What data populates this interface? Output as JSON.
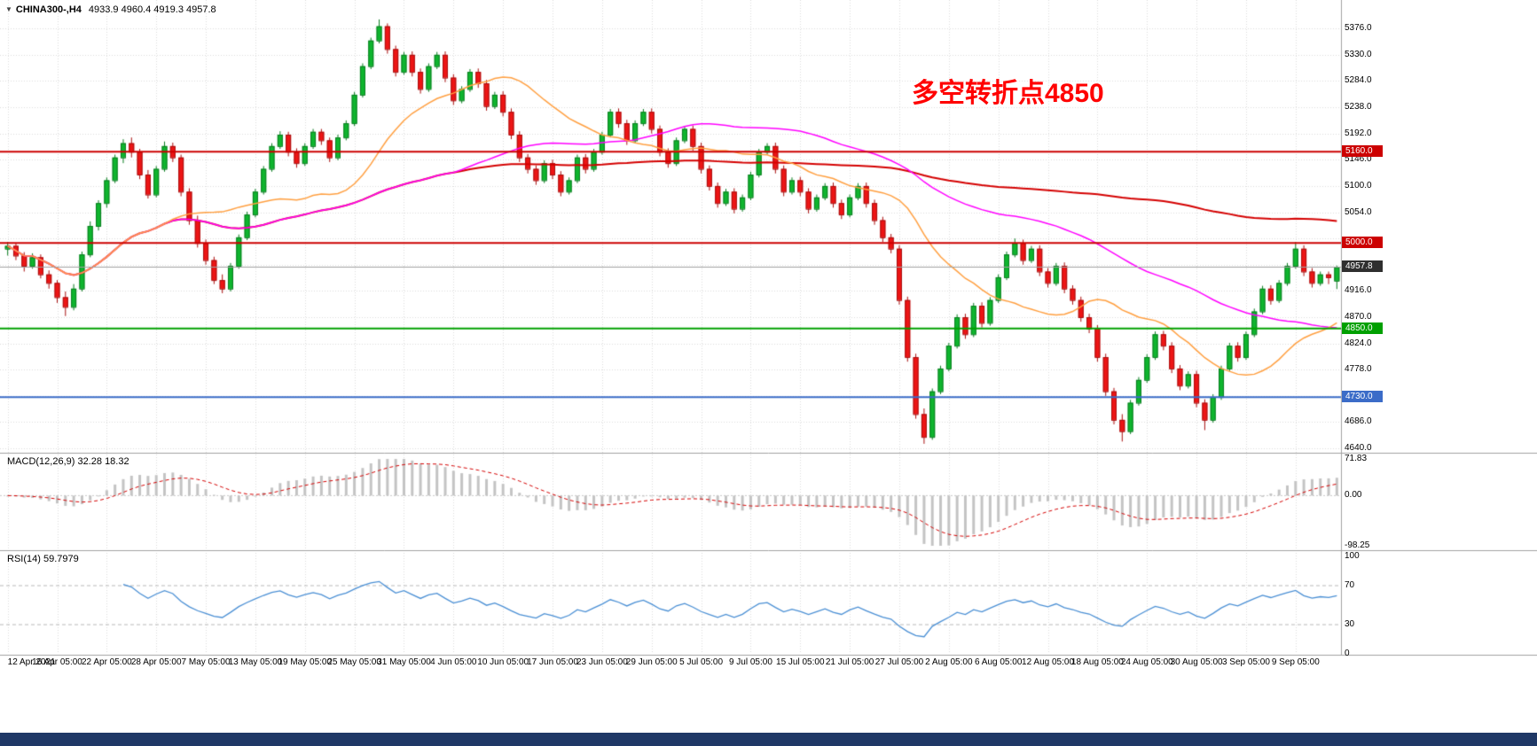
{
  "window": {
    "taskbar_color": "#1F3866"
  },
  "header": {
    "symbol": "CHINA300-,H4",
    "ohlc": "4933.9 4960.4 4919.3 4957.8"
  },
  "annotation": {
    "text": "多空转折点4850",
    "color": "#FF0000"
  },
  "chart_data": {
    "type": "candlestick",
    "symbol": "CHINA300-",
    "timeframe": "H4",
    "grid": true,
    "bars_per_x_label": 6,
    "x_labels": [
      "12 Apr 2021",
      "16 Apr 05:00",
      "22 Apr 05:00",
      "28 Apr 05:00",
      "7 May 05:00",
      "13 May 05:00",
      "19 May 05:00",
      "25 May 05:00",
      "31 May 05:00",
      "4 Jun 05:00",
      "10 Jun 05:00",
      "17 Jun 05:00",
      "23 Jun 05:00",
      "29 Jun 05:00",
      "5 Jul 05:00",
      "9 Jul 05:00",
      "15 Jul 05:00",
      "21 Jul 05:00",
      "27 Jul 05:00",
      "2 Aug 05:00",
      "6 Aug 05:00",
      "12 Aug 05:00",
      "18 Aug 05:00",
      "24 Aug 05:00",
      "30 Aug 05:00",
      "3 Sep 05:00",
      "9 Sep 05:00"
    ],
    "price_axis": {
      "max": 5395,
      "min": 4637,
      "tick_step": 46,
      "ticks": [
        "5376.0",
        "5330.0",
        "5284.0",
        "5238.0",
        "5192.0",
        "5146.0",
        "5100.0",
        "5054.0",
        "4916.0",
        "4870.0",
        "4824.0",
        "4778.0",
        "4686.0",
        "4640.0"
      ]
    },
    "candles": [
      [
        4990,
        5002,
        4978,
        4995
      ],
      [
        4995,
        5000,
        4970,
        4978
      ],
      [
        4978,
        4984,
        4950,
        4960
      ],
      [
        4960,
        4982,
        4955,
        4975
      ],
      [
        4975,
        4980,
        4938,
        4945
      ],
      [
        4945,
        4952,
        4920,
        4930
      ],
      [
        4930,
        4935,
        4895,
        4905
      ],
      [
        4905,
        4915,
        4872,
        4888
      ],
      [
        4888,
        4928,
        4882,
        4920
      ],
      [
        4920,
        4985,
        4915,
        4980
      ],
      [
        4980,
        5038,
        4975,
        5030
      ],
      [
        5030,
        5075,
        5022,
        5070
      ],
      [
        5070,
        5115,
        5062,
        5110
      ],
      [
        5110,
        5155,
        5105,
        5150
      ],
      [
        5150,
        5182,
        5140,
        5175
      ],
      [
        5175,
        5185,
        5150,
        5160
      ],
      [
        5160,
        5165,
        5112,
        5120
      ],
      [
        5120,
        5128,
        5078,
        5085
      ],
      [
        5085,
        5135,
        5080,
        5130
      ],
      [
        5130,
        5178,
        5125,
        5170
      ],
      [
        5170,
        5176,
        5142,
        5150
      ],
      [
        5150,
        5155,
        5082,
        5090
      ],
      [
        5090,
        5096,
        5032,
        5040
      ],
      [
        5040,
        5048,
        4992,
        5000
      ],
      [
        5000,
        5006,
        4962,
        4970
      ],
      [
        4970,
        4976,
        4928,
        4935
      ],
      [
        4935,
        4945,
        4912,
        4920
      ],
      [
        4920,
        4965,
        4915,
        4960
      ],
      [
        4960,
        5015,
        4955,
        5010
      ],
      [
        5010,
        5055,
        5005,
        5050
      ],
      [
        5050,
        5095,
        5045,
        5090
      ],
      [
        5090,
        5135,
        5085,
        5130
      ],
      [
        5130,
        5175,
        5125,
        5170
      ],
      [
        5170,
        5196,
        5165,
        5190
      ],
      [
        5190,
        5195,
        5152,
        5160
      ],
      [
        5160,
        5166,
        5132,
        5140
      ],
      [
        5140,
        5175,
        5135,
        5170
      ],
      [
        5170,
        5200,
        5165,
        5195
      ],
      [
        5195,
        5200,
        5172,
        5180
      ],
      [
        5180,
        5185,
        5142,
        5150
      ],
      [
        5150,
        5190,
        5145,
        5185
      ],
      [
        5185,
        5215,
        5180,
        5210
      ],
      [
        5210,
        5265,
        5205,
        5260
      ],
      [
        5260,
        5315,
        5255,
        5310
      ],
      [
        5310,
        5360,
        5305,
        5355
      ],
      [
        5355,
        5392,
        5350,
        5380
      ],
      [
        5380,
        5385,
        5332,
        5340
      ],
      [
        5340,
        5346,
        5292,
        5300
      ],
      [
        5300,
        5335,
        5295,
        5330
      ],
      [
        5330,
        5336,
        5292,
        5300
      ],
      [
        5300,
        5306,
        5262,
        5270
      ],
      [
        5270,
        5315,
        5265,
        5310
      ],
      [
        5310,
        5335,
        5305,
        5330
      ],
      [
        5330,
        5336,
        5282,
        5290
      ],
      [
        5290,
        5296,
        5242,
        5250
      ],
      [
        5250,
        5275,
        5245,
        5270
      ],
      [
        5270,
        5305,
        5265,
        5300
      ],
      [
        5300,
        5306,
        5272,
        5280
      ],
      [
        5280,
        5286,
        5232,
        5240
      ],
      [
        5240,
        5265,
        5235,
        5260
      ],
      [
        5260,
        5266,
        5222,
        5230
      ],
      [
        5230,
        5236,
        5182,
        5190
      ],
      [
        5190,
        5196,
        5142,
        5150
      ],
      [
        5150,
        5156,
        5122,
        5130
      ],
      [
        5130,
        5136,
        5102,
        5110
      ],
      [
        5110,
        5145,
        5105,
        5140
      ],
      [
        5140,
        5146,
        5112,
        5120
      ],
      [
        5120,
        5126,
        5082,
        5090
      ],
      [
        5090,
        5115,
        5085,
        5110
      ],
      [
        5110,
        5155,
        5105,
        5150
      ],
      [
        5150,
        5156,
        5122,
        5130
      ],
      [
        5130,
        5165,
        5125,
        5160
      ],
      [
        5160,
        5195,
        5155,
        5190
      ],
      [
        5190,
        5235,
        5185,
        5230
      ],
      [
        5230,
        5236,
        5202,
        5210
      ],
      [
        5210,
        5216,
        5172,
        5180
      ],
      [
        5180,
        5215,
        5175,
        5210
      ],
      [
        5210,
        5235,
        5205,
        5230
      ],
      [
        5230,
        5236,
        5192,
        5200
      ],
      [
        5200,
        5206,
        5152,
        5160
      ],
      [
        5160,
        5166,
        5132,
        5140
      ],
      [
        5140,
        5185,
        5135,
        5180
      ],
      [
        5180,
        5205,
        5175,
        5200
      ],
      [
        5200,
        5206,
        5162,
        5170
      ],
      [
        5170,
        5176,
        5122,
        5130
      ],
      [
        5130,
        5136,
        5092,
        5100
      ],
      [
        5100,
        5106,
        5062,
        5070
      ],
      [
        5070,
        5095,
        5065,
        5090
      ],
      [
        5090,
        5096,
        5052,
        5060
      ],
      [
        5060,
        5085,
        5055,
        5080
      ],
      [
        5080,
        5125,
        5075,
        5120
      ],
      [
        5120,
        5165,
        5115,
        5160
      ],
      [
        5160,
        5175,
        5155,
        5170
      ],
      [
        5170,
        5176,
        5122,
        5130
      ],
      [
        5130,
        5136,
        5082,
        5090
      ],
      [
        5090,
        5115,
        5085,
        5110
      ],
      [
        5110,
        5116,
        5082,
        5090
      ],
      [
        5090,
        5096,
        5052,
        5060
      ],
      [
        5060,
        5085,
        5055,
        5080
      ],
      [
        5080,
        5105,
        5075,
        5100
      ],
      [
        5100,
        5106,
        5062,
        5070
      ],
      [
        5070,
        5076,
        5042,
        5050
      ],
      [
        5050,
        5085,
        5045,
        5080
      ],
      [
        5080,
        5105,
        5075,
        5100
      ],
      [
        5100,
        5106,
        5062,
        5070
      ],
      [
        5070,
        5076,
        5032,
        5040
      ],
      [
        5040,
        5046,
        5002,
        5010
      ],
      [
        5010,
        5016,
        4982,
        4990
      ],
      [
        4990,
        4996,
        4892,
        4900
      ],
      [
        4900,
        4906,
        4792,
        4800
      ],
      [
        4800,
        4806,
        4692,
        4700
      ],
      [
        4700,
        4710,
        4648,
        4660
      ],
      [
        4660,
        4745,
        4655,
        4740
      ],
      [
        4740,
        4785,
        4735,
        4780
      ],
      [
        4780,
        4825,
        4775,
        4820
      ],
      [
        4820,
        4875,
        4815,
        4870
      ],
      [
        4870,
        4876,
        4832,
        4840
      ],
      [
        4840,
        4895,
        4835,
        4890
      ],
      [
        4890,
        4896,
        4852,
        4860
      ],
      [
        4860,
        4905,
        4855,
        4900
      ],
      [
        4900,
        4945,
        4895,
        4940
      ],
      [
        4940,
        4985,
        4935,
        4980
      ],
      [
        4980,
        5008,
        4975,
        5000
      ],
      [
        5000,
        5006,
        4962,
        4970
      ],
      [
        4970,
        4995,
        4965,
        4990
      ],
      [
        4990,
        4996,
        4942,
        4950
      ],
      [
        4950,
        4956,
        4922,
        4930
      ],
      [
        4930,
        4965,
        4925,
        4960
      ],
      [
        4960,
        4966,
        4912,
        4920
      ],
      [
        4920,
        4926,
        4892,
        4900
      ],
      [
        4900,
        4906,
        4862,
        4870
      ],
      [
        4870,
        4876,
        4842,
        4850
      ],
      [
        4850,
        4856,
        4792,
        4800
      ],
      [
        4800,
        4806,
        4732,
        4740
      ],
      [
        4740,
        4746,
        4682,
        4690
      ],
      [
        4690,
        4700,
        4652,
        4670
      ],
      [
        4670,
        4725,
        4665,
        4720
      ],
      [
        4720,
        4765,
        4715,
        4760
      ],
      [
        4760,
        4805,
        4755,
        4800
      ],
      [
        4800,
        4845,
        4795,
        4840
      ],
      [
        4840,
        4846,
        4812,
        4820
      ],
      [
        4820,
        4826,
        4772,
        4780
      ],
      [
        4780,
        4786,
        4742,
        4750
      ],
      [
        4750,
        4775,
        4745,
        4770
      ],
      [
        4770,
        4776,
        4712,
        4720
      ],
      [
        4720,
        4726,
        4672,
        4690
      ],
      [
        4690,
        4735,
        4685,
        4730
      ],
      [
        4730,
        4785,
        4725,
        4780
      ],
      [
        4780,
        4825,
        4775,
        4820
      ],
      [
        4820,
        4826,
        4792,
        4800
      ],
      [
        4800,
        4845,
        4795,
        4840
      ],
      [
        4840,
        4885,
        4835,
        4880
      ],
      [
        4880,
        4925,
        4875,
        4920
      ],
      [
        4920,
        4926,
        4892,
        4900
      ],
      [
        4900,
        4935,
        4895,
        4930
      ],
      [
        4930,
        4965,
        4925,
        4960
      ],
      [
        4960,
        5002,
        4955,
        4990
      ],
      [
        4990,
        4996,
        4942,
        4950
      ],
      [
        4950,
        4956,
        4922,
        4930
      ],
      [
        4930,
        4950,
        4925,
        4945
      ],
      [
        4945,
        4950,
        4928,
        4940
      ],
      [
        4933.9,
        4960.4,
        4919.3,
        4957.8
      ]
    ],
    "candle_colors": {
      "up_fill": "#0FB52E",
      "up_stroke": "#0A7D20",
      "down_fill": "#ED1515",
      "down_stroke": "#A80F0F"
    },
    "moving_averages": [
      {
        "name": "slow-ma",
        "period": 130,
        "color": "#D40000",
        "width": 2
      },
      {
        "name": "medium-ma",
        "period": 55,
        "color": "#FF00FF",
        "width": 1.5
      },
      {
        "name": "fast-ma",
        "period": 20,
        "color": "#FF9F40",
        "width": 1.5
      }
    ],
    "horizontal_lines": [
      {
        "label": "5160.0",
        "value": 5160,
        "color": "#CC0000"
      },
      {
        "label": "5000.0",
        "value": 5000,
        "color": "#CC0000"
      },
      {
        "label": "4850.0",
        "value": 4850,
        "color": "#00A000"
      },
      {
        "label": "4730.0",
        "value": 4730,
        "color": "#3B6CC8"
      }
    ],
    "current_price": {
      "label": "4957.8",
      "value": 4957.8,
      "badge_color": "#2F2F2F",
      "line_color": "#A0A0A0"
    },
    "macd": {
      "label": "MACD(12,26,9)",
      "current": "32.28 18.32",
      "fast": 12,
      "slow": 26,
      "signal": 9,
      "max": 71.83,
      "min": -98.25,
      "axis_labels": [
        "71.83",
        "0.00",
        "-98.25"
      ],
      "histogram_color": "#C4C4C4",
      "signal_color": "#D40000"
    },
    "rsi": {
      "label": "RSI(14)",
      "current": "59.7979",
      "period": 14,
      "axis_labels": [
        "100",
        "70",
        "30",
        "0"
      ],
      "levels": [
        70,
        30
      ],
      "line_color": "#4A8FD4"
    }
  }
}
